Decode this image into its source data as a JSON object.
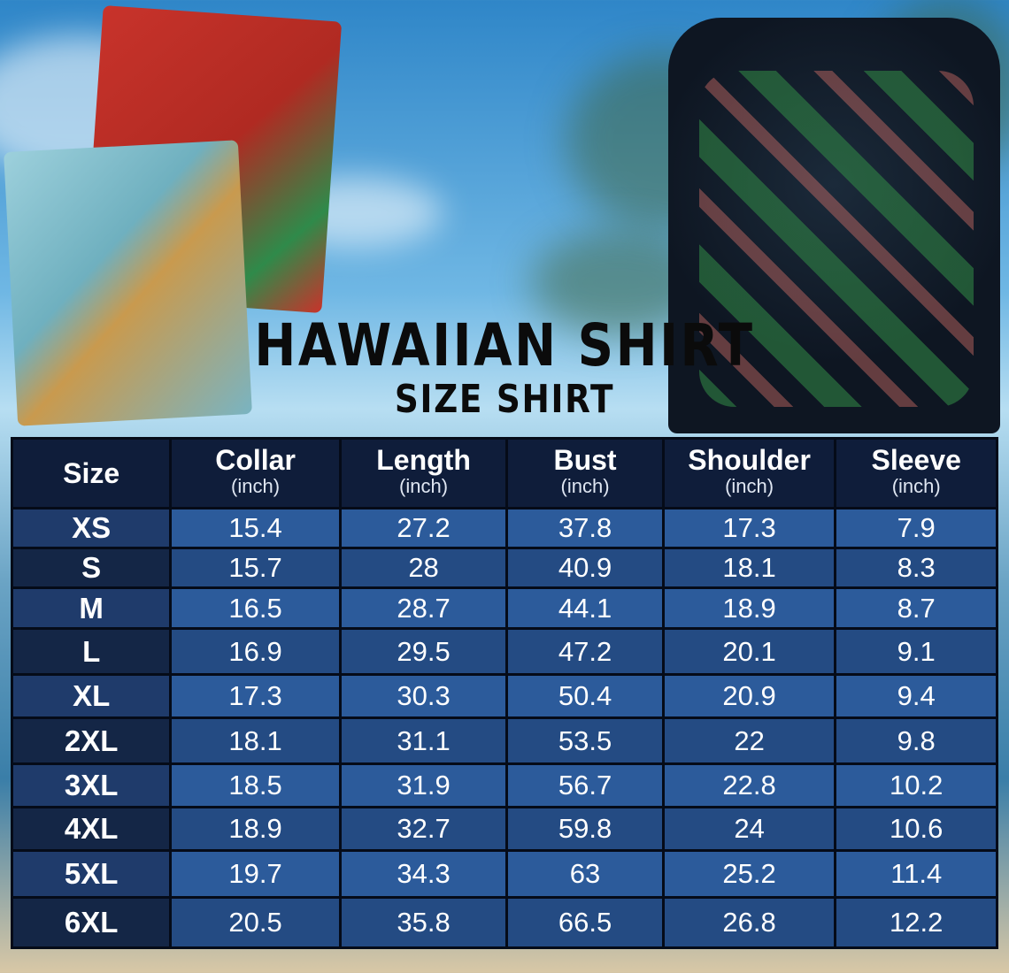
{
  "title": "HAWAIIAN SHIRT",
  "subtitle": "SIZE SHIRT",
  "table": {
    "headers": [
      {
        "label": "Size",
        "unit": ""
      },
      {
        "label": "Collar",
        "unit": "(inch)"
      },
      {
        "label": "Length",
        "unit": "(inch)"
      },
      {
        "label": "Bust",
        "unit": "(inch)"
      },
      {
        "label": "Shoulder",
        "unit": "(inch)"
      },
      {
        "label": "Sleeve",
        "unit": "(inch)"
      }
    ],
    "rows": [
      [
        "XS",
        "15.4",
        "27.2",
        "37.8",
        "17.3",
        "7.9"
      ],
      [
        "S",
        "15.7",
        "28",
        "40.9",
        "18.1",
        "8.3"
      ],
      [
        "M",
        "16.5",
        "28.7",
        "44.1",
        "18.9",
        "8.7"
      ],
      [
        "L",
        "16.9",
        "29.5",
        "47.2",
        "20.1",
        "9.1"
      ],
      [
        "XL",
        "17.3",
        "30.3",
        "50.4",
        "20.9",
        "9.4"
      ],
      [
        "2XL",
        "18.1",
        "31.1",
        "53.5",
        "22",
        "9.8"
      ],
      [
        "3XL",
        "18.5",
        "31.9",
        "56.7",
        "22.8",
        "10.2"
      ],
      [
        "4XL",
        "18.9",
        "32.7",
        "59.8",
        "24",
        "10.6"
      ],
      [
        "5XL",
        "19.7",
        "34.3",
        "63",
        "25.2",
        "11.4"
      ],
      [
        "6XL",
        "20.5",
        "35.8",
        "66.5",
        "26.8",
        "12.2"
      ]
    ]
  },
  "colors": {
    "header": "#0f1d3a",
    "size_cell": "#1f3b6b",
    "value_cell": "#2c5b9b"
  }
}
